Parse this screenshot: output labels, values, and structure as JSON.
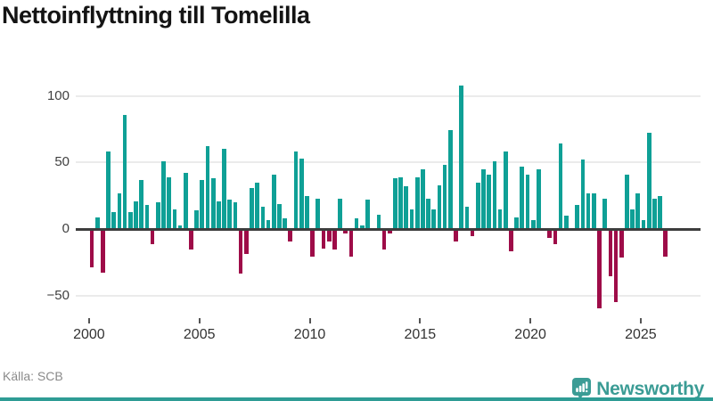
{
  "header": {
    "title": "Nettoinflyttning till Tomelilla"
  },
  "footer": {
    "source_label": "Källa: SCB",
    "brand_name": "Newsworthy"
  },
  "colors": {
    "positive_bar": "#0FA096",
    "negative_bar": "#9E0C48",
    "brand_teal": "#3B9C95",
    "zero_line": "#3D3D3D",
    "gridline": "#EBEBEB",
    "axis_text": "#3F3F3F"
  },
  "icons": {
    "brand_logo": "newsworthy-barchart-bubble-icon"
  },
  "chart_data": {
    "type": "bar",
    "title": "Nettoinflyttning till Tomelilla",
    "frequency": "quarterly",
    "x_start": "2000 Q1",
    "x_end": "2026 Q1",
    "y_ticks": [
      -50,
      0,
      50,
      100
    ],
    "x_tick_years": [
      2000,
      2005,
      2010,
      2015,
      2020,
      2025
    ],
    "ylim": [
      -65,
      115
    ],
    "grid": "horizontal",
    "legend": "none",
    "values": [
      -28,
      9,
      -32,
      58,
      13,
      27,
      86,
      13,
      21,
      37,
      18,
      -11,
      20,
      51,
      39,
      15,
      3,
      42,
      -15,
      14,
      37,
      62,
      38,
      21,
      60,
      22,
      20,
      -33,
      -18,
      31,
      35,
      17,
      7,
      41,
      19,
      8,
      -9,
      58,
      53,
      25,
      -20,
      23,
      -14,
      -9,
      -15,
      23,
      -3,
      -20,
      8,
      3,
      22,
      1,
      11,
      -15,
      -3,
      38,
      39,
      32,
      15,
      39,
      45,
      23,
      15,
      33,
      48,
      74,
      -9,
      108,
      17,
      -5,
      35,
      45,
      41,
      51,
      15,
      58,
      -16,
      9,
      47,
      41,
      7,
      45,
      0,
      -6,
      -11,
      64,
      10,
      0,
      18,
      52,
      27,
      27,
      -59,
      23,
      -35,
      -54,
      -21,
      41,
      15,
      27,
      7,
      72,
      23,
      25,
      -20
    ]
  }
}
